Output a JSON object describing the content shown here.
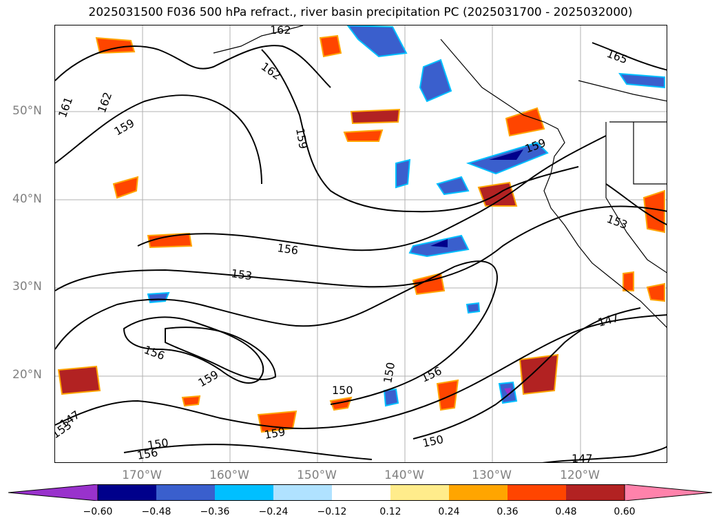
{
  "title": "2025031500 F036 500 hPa refract., river basin precipitation PC (2025031700 - 2025032000)",
  "lat_labels": [
    "50°N",
    "40°N",
    "30°N",
    "20°N"
  ],
  "lon_labels": [
    "170°W",
    "160°W",
    "150°W",
    "140°W",
    "130°W",
    "120°W"
  ],
  "contour_labels": [
    "162",
    "162",
    "165",
    "161",
    "162",
    "159",
    "159",
    "159",
    "156",
    "153",
    "153",
    "156",
    "159",
    "150",
    "150",
    "156",
    "147",
    "150",
    "159",
    "156",
    "150",
    "147",
    "153",
    "147"
  ],
  "colorbar": {
    "colors": [
      "#9932CC",
      "#00008B",
      "#3A5FCD",
      "#00BFFF",
      "#B0E2FF",
      "#FFFFFF",
      "#FFEC8B",
      "#FFA500",
      "#FF4500",
      "#B22222",
      "#FF82AB"
    ],
    "ticks": [
      "−0.60",
      "−0.48",
      "−0.36",
      "−0.24",
      "−0.12",
      "0.12",
      "0.24",
      "0.36",
      "0.48",
      "0.60"
    ]
  },
  "colors": {
    "gridline": "#b0b0b0",
    "contour": "#000000",
    "label_gray": "#808080"
  }
}
